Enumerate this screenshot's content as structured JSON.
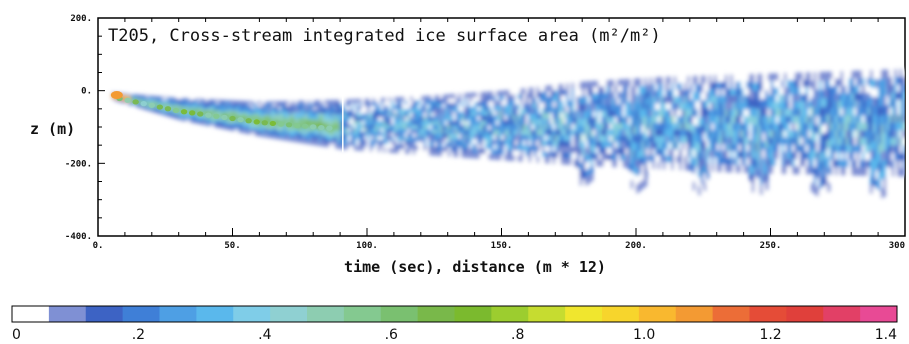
{
  "chart_data": {
    "type": "heatmap",
    "title": "T205, Cross-stream integrated ice surface area (m²/m²)",
    "xlabel": "time (sec), distance (m * 12)",
    "ylabel": "z (m)",
    "xlim": [
      0,
      300
    ],
    "ylim": [
      -400,
      200
    ],
    "x_ticks": [
      "0.",
      "50.",
      "100.",
      "150.",
      "200.",
      "250.",
      "300"
    ],
    "y_ticks": [
      "200.",
      "0.",
      "-200.",
      "-400."
    ],
    "grid": false,
    "colorbar": {
      "range": [
        0,
        1.4
      ],
      "tick_labels": [
        "0",
        ".2",
        ".4",
        ".6",
        ".8",
        "1.0",
        "1.2",
        "1.4"
      ],
      "tick_values": [
        0,
        0.2,
        0.4,
        0.6,
        0.8,
        1.0,
        1.2,
        1.4
      ],
      "colors": [
        "#ffffff",
        "#7f90d4",
        "#3d63c4",
        "#3f7fd7",
        "#4e9fe4",
        "#5ab8ec",
        "#7fcde8",
        "#8fd0d2",
        "#8dcdb1",
        "#84c990",
        "#7ac070",
        "#79b84a",
        "#7bba2e",
        "#9ccd2f",
        "#c6dc30",
        "#f0e62e",
        "#f7d52c",
        "#f9b82f",
        "#f39a33",
        "#ec6d37",
        "#e54c37",
        "#e0403b",
        "#e24066",
        "#e84a95"
      ]
    },
    "plume": {
      "top_edge": [
        [
          5,
          -5
        ],
        [
          30,
          -20
        ],
        [
          60,
          -30
        ],
        [
          90,
          -25
        ],
        [
          120,
          -15
        ],
        [
          150,
          0
        ],
        [
          180,
          25
        ],
        [
          210,
          38
        ],
        [
          240,
          45
        ],
        [
          270,
          52
        ],
        [
          300,
          60
        ]
      ],
      "bottom_edge": [
        [
          5,
          -25
        ],
        [
          30,
          -80
        ],
        [
          60,
          -125
        ],
        [
          90,
          -160
        ],
        [
          120,
          -175
        ],
        [
          150,
          -190
        ],
        [
          180,
          -205
        ],
        [
          210,
          -215
        ],
        [
          240,
          -225
        ],
        [
          270,
          -230
        ],
        [
          300,
          -235
        ]
      ],
      "fingers": [
        [
          180,
          -265
        ],
        [
          200,
          -280
        ],
        [
          223,
          -285
        ],
        [
          245,
          -290
        ],
        [
          268,
          -295
        ],
        [
          290,
          -300
        ]
      ],
      "core_value": 0.55,
      "peak_value": 1.1
    }
  }
}
